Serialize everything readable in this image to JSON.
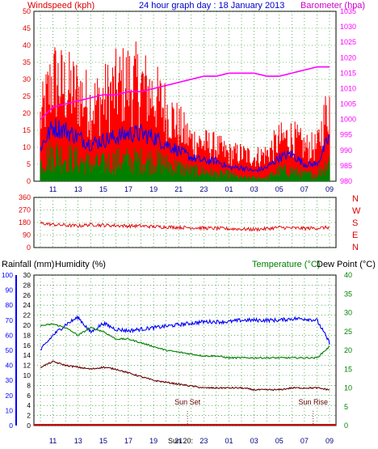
{
  "header": {
    "windspeed_label": "Windspeed (kph)",
    "title": "24 hour graph day : 18 January 2013",
    "barometer_label": "Barometer (hpa)"
  },
  "colors": {
    "background": "#ffffff",
    "plot_bg": "#ffffff",
    "red_text": "#e00000",
    "blue_text": "#0000cc",
    "green_text": "#008000",
    "magenta": "#ff00ff",
    "gust_red": "#ff0000",
    "wind_green": "#008000",
    "avg_blue": "#0000ff",
    "dir_red": "#e00000",
    "humidity_blue": "#0000ff",
    "temp_green": "#008000",
    "dew_darkred": "#660000",
    "rain": "#cc0000",
    "grid": "#008000"
  },
  "time_ticks": [
    "11",
    "13",
    "15",
    "17",
    "19",
    "21",
    "23",
    "01",
    "03",
    "05",
    "07",
    "09"
  ],
  "chart_data": [
    {
      "type": "line",
      "title": "24 hour graph day : 18 January 2013",
      "ylabel": "Windspeed (kph)",
      "y2label": "Barometer (hpa)",
      "ylim": [
        0,
        50
      ],
      "y2lim": [
        980,
        1035
      ],
      "y_ticks": [
        "0",
        "5",
        "10",
        "15",
        "20",
        "25",
        "30",
        "35",
        "40",
        "45",
        "50"
      ],
      "y2_ticks": [
        "980",
        "985",
        "990",
        "995",
        "1000",
        "1005",
        "1010",
        "1015",
        "1020",
        "1025",
        "1030",
        "1035"
      ],
      "x": [
        "10",
        "11",
        "12",
        "13",
        "14",
        "15",
        "16",
        "17",
        "18",
        "19",
        "20",
        "21",
        "22",
        "23",
        "00",
        "01",
        "02",
        "03",
        "04",
        "05",
        "06",
        "07",
        "08",
        "09"
      ],
      "series": [
        {
          "name": "Gust",
          "values": [
            18,
            30,
            27,
            26,
            22,
            24,
            27,
            29,
            28,
            25,
            21,
            16,
            12,
            11,
            10,
            8,
            8,
            7,
            8,
            12,
            13,
            10,
            10,
            23
          ]
        },
        {
          "name": "Average",
          "values": [
            10,
            16,
            15,
            13,
            11,
            12,
            13,
            14,
            14,
            13,
            11,
            9,
            7,
            6,
            6,
            4,
            4,
            3,
            4,
            7,
            8,
            5,
            5,
            13
          ]
        },
        {
          "name": "Wind",
          "values": [
            5,
            8,
            7,
            6,
            5,
            5,
            6,
            6,
            6,
            6,
            5,
            4,
            3,
            3,
            2,
            2,
            1,
            1,
            1,
            3,
            3,
            2,
            2,
            6
          ]
        },
        {
          "name": "Barometer",
          "values": [
            1000,
            1004,
            1005,
            1006,
            1007,
            1008,
            1008,
            1009,
            1009,
            1010,
            1011,
            1012,
            1013,
            1014,
            1014,
            1015,
            1015,
            1015,
            1014,
            1014,
            1015,
            1016,
            1017,
            1017
          ]
        }
      ]
    },
    {
      "type": "scatter",
      "ylabel": "Wind direction",
      "y_ticks": [
        "360",
        "270",
        "180",
        "90",
        "0"
      ],
      "right_labels": [
        "N",
        "W",
        "S",
        "E",
        "N"
      ],
      "ylim": [
        0,
        360
      ],
      "x": [
        "10",
        "11",
        "12",
        "13",
        "14",
        "15",
        "16",
        "17",
        "18",
        "19",
        "20",
        "21",
        "22",
        "23",
        "00",
        "01",
        "02",
        "03",
        "04",
        "05",
        "06",
        "07",
        "08",
        "09"
      ],
      "series": [
        {
          "name": "Direction",
          "values": [
            175,
            165,
            160,
            155,
            165,
            160,
            158,
            155,
            155,
            150,
            148,
            145,
            143,
            140,
            138,
            135,
            133,
            130,
            135,
            145,
            140,
            138,
            140,
            145
          ]
        }
      ]
    },
    {
      "type": "line",
      "left_label_1": "Rainfall (mm)",
      "left_label_2": "Humidity (%)",
      "right_label_1": "Temperature (°C)",
      "right_label_2": "Dew Point (°C)",
      "humidity_ticks": [
        "0",
        "10",
        "20",
        "30",
        "40",
        "50",
        "60",
        "70",
        "80",
        "90",
        "100"
      ],
      "rain_ticks": [
        "0",
        "2",
        "4",
        "6",
        "8",
        "10",
        "12",
        "14",
        "16",
        "18",
        "20",
        "22",
        "24",
        "26",
        "28",
        "30"
      ],
      "temp_ticks": [
        "0",
        "5",
        "10",
        "15",
        "20",
        "25",
        "30",
        "35",
        "40"
      ],
      "ylim_humidity": [
        0,
        100
      ],
      "ylim_temp": [
        0,
        40
      ],
      "x": [
        "10",
        "11",
        "12",
        "13",
        "14",
        "15",
        "16",
        "17",
        "18",
        "19",
        "20",
        "21",
        "22",
        "23",
        "00",
        "01",
        "02",
        "03",
        "04",
        "05",
        "06",
        "07",
        "08",
        "09"
      ],
      "series": [
        {
          "name": "Humidity",
          "values": [
            50,
            60,
            67,
            72,
            62,
            68,
            64,
            63,
            64,
            65,
            66,
            67,
            68,
            69,
            69,
            69,
            70,
            70,
            70,
            70,
            71,
            71,
            70,
            55
          ]
        },
        {
          "name": "Temperature",
          "values": [
            26.5,
            27,
            26,
            24,
            26,
            25,
            23,
            23,
            22,
            21,
            20,
            19.5,
            19,
            18.5,
            18.5,
            18,
            18,
            18,
            18,
            18,
            18,
            18,
            18,
            21
          ]
        },
        {
          "name": "Dew Point",
          "values": [
            15.5,
            17,
            16,
            15.5,
            15,
            15.5,
            15,
            14,
            13,
            12,
            11.5,
            11,
            10.5,
            10,
            10,
            10,
            10,
            9.5,
            9.5,
            9.5,
            10,
            10,
            10,
            9.5
          ]
        },
        {
          "name": "Rainfall",
          "values": [
            0,
            0,
            0,
            0,
            0,
            0,
            0,
            0,
            0,
            0,
            0,
            0,
            0,
            0,
            0,
            0,
            0,
            0,
            0,
            0,
            0,
            0,
            0,
            0
          ]
        }
      ],
      "annotations": [
        {
          "text": "Sun Set",
          "x": "21"
        },
        {
          "text": "Sun Rise",
          "x": "07"
        }
      ],
      "bottom_marker": "Sun 20:"
    }
  ]
}
